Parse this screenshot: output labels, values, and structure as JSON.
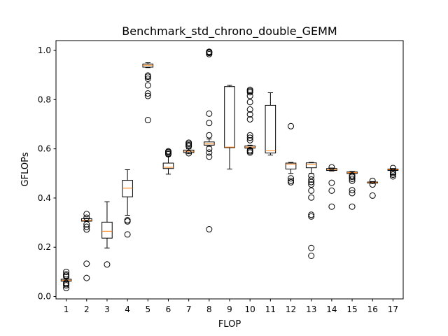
{
  "chart_data": {
    "type": "box",
    "title": "Benchmark_std_chrono_double_GEMM",
    "xlabel": "FLOP",
    "ylabel": "GFLOPs",
    "ylim": [
      -0.01,
      1.04
    ],
    "yticks": [
      0.0,
      0.2,
      0.4,
      0.6,
      0.8,
      1.0
    ],
    "ytick_labels": [
      "0.0",
      "0.2",
      "0.4",
      "0.6",
      "0.8",
      "1.0"
    ],
    "categories": [
      "1",
      "2",
      "3",
      "4",
      "5",
      "6",
      "7",
      "8",
      "9",
      "10",
      "11",
      "12",
      "13",
      "14",
      "15",
      "16",
      "17"
    ],
    "grid": false,
    "colors": {
      "box": "#000000",
      "median": "#ff7f0e",
      "flier": "#000000"
    },
    "boxes": [
      {
        "category": "1",
        "whislo": 0.06,
        "q1": 0.062,
        "median": 0.066,
        "q3": 0.07,
        "whishi": 0.073,
        "fliers": [
          0.034,
          0.045,
          0.05,
          0.055,
          0.08,
          0.085,
          0.09,
          0.1
        ]
      },
      {
        "category": "2",
        "whislo": 0.305,
        "q1": 0.306,
        "median": 0.31,
        "q3": 0.316,
        "whishi": 0.318,
        "fliers": [
          0.075,
          0.133,
          0.272,
          0.283,
          0.293,
          0.32,
          0.335
        ]
      },
      {
        "category": "3",
        "whislo": 0.197,
        "q1": 0.237,
        "median": 0.265,
        "q3": 0.302,
        "whishi": 0.385,
        "fliers": [
          0.13
        ]
      },
      {
        "category": "4",
        "whislo": 0.33,
        "q1": 0.405,
        "median": 0.44,
        "q3": 0.472,
        "whishi": 0.515,
        "fliers": [
          0.252,
          0.305,
          0.31
        ]
      },
      {
        "category": "5",
        "whislo": 0.93,
        "q1": 0.932,
        "median": 0.94,
        "q3": 0.945,
        "whishi": 0.95,
        "fliers": [
          0.717,
          0.815,
          0.825,
          0.858,
          0.885,
          0.893,
          0.898
        ]
      },
      {
        "category": "6",
        "whislo": 0.497,
        "q1": 0.52,
        "median": 0.525,
        "q3": 0.542,
        "whishi": 0.57,
        "fliers": [
          0.578,
          0.582,
          0.587,
          0.59
        ]
      },
      {
        "category": "7",
        "whislo": 0.58,
        "q1": 0.585,
        "median": 0.59,
        "q3": 0.595,
        "whishi": 0.6,
        "fliers": [
          0.582,
          0.61,
          0.615,
          0.62,
          0.625
        ]
      },
      {
        "category": "8",
        "whislo": 0.61,
        "q1": 0.615,
        "median": 0.62,
        "q3": 0.628,
        "whishi": 0.64,
        "fliers": [
          0.273,
          0.568,
          0.585,
          0.6,
          0.655,
          0.705,
          0.743,
          0.985,
          0.99,
          0.993,
          0.995
        ]
      },
      {
        "category": "9",
        "whislo": 0.518,
        "q1": 0.605,
        "median": 0.607,
        "q3": 0.853,
        "whishi": 0.858,
        "fliers": []
      },
      {
        "category": "10",
        "whislo": 0.6,
        "q1": 0.603,
        "median": 0.607,
        "q3": 0.612,
        "whishi": 0.615,
        "fliers": [
          0.585,
          0.59,
          0.595,
          0.635,
          0.645,
          0.655,
          0.72,
          0.74,
          0.76,
          0.79,
          0.815,
          0.83,
          0.835,
          0.84
        ]
      },
      {
        "category": "11",
        "whislo": 0.575,
        "q1": 0.583,
        "median": 0.592,
        "q3": 0.777,
        "whishi": 0.828,
        "fliers": []
      },
      {
        "category": "12",
        "whislo": 0.5,
        "q1": 0.518,
        "median": 0.538,
        "q3": 0.542,
        "whishi": 0.545,
        "fliers": [
          0.464,
          0.47,
          0.48,
          0.692
        ]
      },
      {
        "category": "13",
        "whislo": 0.5,
        "q1": 0.523,
        "median": 0.537,
        "q3": 0.543,
        "whishi": 0.545,
        "fliers": [
          0.165,
          0.197,
          0.325,
          0.332,
          0.402,
          0.43,
          0.455,
          0.465,
          0.475,
          0.49
        ]
      },
      {
        "category": "14",
        "whislo": 0.51,
        "q1": 0.512,
        "median": 0.516,
        "q3": 0.52,
        "whishi": 0.522,
        "fliers": [
          0.365,
          0.43,
          0.462,
          0.525
        ]
      },
      {
        "category": "15",
        "whislo": 0.498,
        "q1": 0.5,
        "median": 0.503,
        "q3": 0.506,
        "whishi": 0.508,
        "fliers": [
          0.365,
          0.42,
          0.432,
          0.47,
          0.478,
          0.486,
          0.492
        ]
      },
      {
        "category": "16",
        "whislo": 0.46,
        "q1": 0.461,
        "median": 0.463,
        "q3": 0.465,
        "whishi": 0.467,
        "fliers": [
          0.41,
          0.455,
          0.47
        ]
      },
      {
        "category": "17",
        "whislo": 0.51,
        "q1": 0.512,
        "median": 0.515,
        "q3": 0.518,
        "whishi": 0.52,
        "fliers": [
          0.488,
          0.495,
          0.502,
          0.506,
          0.522
        ]
      }
    ]
  }
}
